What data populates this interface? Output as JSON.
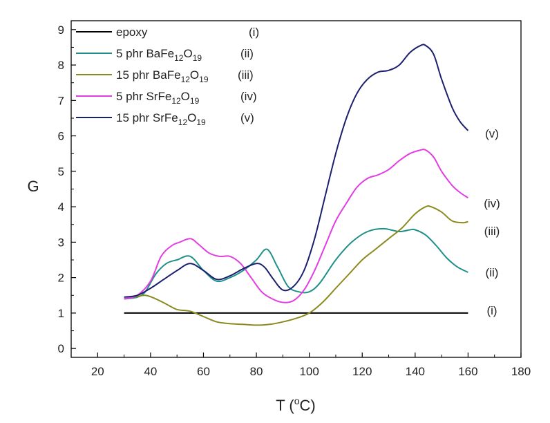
{
  "chart_data": {
    "type": "line",
    "title": "",
    "xlabel": "T (",
    "xlabel_sup": "o",
    "xlabel_tail": "C)",
    "ylabel": "G",
    "xlim": [
      10,
      180
    ],
    "ylim": [
      -0.25,
      9.25
    ],
    "xticks": [
      20,
      40,
      60,
      80,
      100,
      120,
      140,
      160,
      180
    ],
    "yticks": [
      0,
      1,
      2,
      3,
      4,
      5,
      6,
      7,
      8,
      9
    ],
    "legend_position": "top-left",
    "series": [
      {
        "name": "epoxy",
        "tag": "(i)",
        "end_label": "(i)",
        "color": "#000000",
        "legend": [
          {
            "t": "epoxy",
            "sub": false
          }
        ],
        "x": [
          30,
          160
        ],
        "y": [
          1.0,
          1.0
        ]
      },
      {
        "name": "5 phr BaFe12O19",
        "tag": "(ii)",
        "end_label": "(ii)",
        "color": "#1f8f8a",
        "legend": [
          {
            "t": "5 phr BaFe",
            "sub": false
          },
          {
            "t": "12",
            "sub": true
          },
          {
            "t": "O",
            "sub": false
          },
          {
            "t": "19",
            "sub": true
          }
        ],
        "x": [
          30,
          35,
          38,
          42,
          46,
          50,
          55,
          60,
          65,
          70,
          75,
          80,
          84,
          88,
          92,
          96,
          100,
          104,
          110,
          116,
          122,
          128,
          134,
          138,
          140,
          144,
          148,
          152,
          156,
          160
        ],
        "y": [
          1.4,
          1.45,
          1.6,
          2.1,
          2.4,
          2.5,
          2.6,
          2.2,
          1.9,
          2.0,
          2.2,
          2.5,
          2.8,
          2.3,
          1.75,
          1.6,
          1.6,
          1.85,
          2.5,
          3.0,
          3.3,
          3.38,
          3.3,
          3.35,
          3.35,
          3.2,
          2.9,
          2.55,
          2.3,
          2.15
        ]
      },
      {
        "name": "15 phr BaFe12O19",
        "tag": "(iii)",
        "end_label": "(iii)",
        "color": "#8a8a1f",
        "legend": [
          {
            "t": "15 phr BaFe",
            "sub": false
          },
          {
            "t": "12",
            "sub": true
          },
          {
            "t": "O",
            "sub": false
          },
          {
            "t": "19",
            "sub": true
          }
        ],
        "x": [
          30,
          34,
          38,
          42,
          46,
          50,
          55,
          60,
          65,
          70,
          75,
          80,
          85,
          90,
          95,
          100,
          105,
          110,
          115,
          120,
          125,
          130,
          135,
          140,
          144,
          146,
          150,
          154,
          158,
          160
        ],
        "y": [
          1.4,
          1.45,
          1.5,
          1.4,
          1.25,
          1.1,
          1.05,
          0.9,
          0.75,
          0.7,
          0.68,
          0.66,
          0.68,
          0.75,
          0.85,
          1.0,
          1.3,
          1.7,
          2.1,
          2.5,
          2.8,
          3.1,
          3.4,
          3.8,
          4.0,
          4.0,
          3.85,
          3.6,
          3.55,
          3.58
        ]
      },
      {
        "name": "5 phr SrFe12O19",
        "tag": "(iv)",
        "end_label": "(iv)",
        "color": "#e23de2",
        "legend": [
          {
            "t": "5 phr SrFe",
            "sub": false
          },
          {
            "t": "12",
            "sub": true
          },
          {
            "t": "O",
            "sub": false
          },
          {
            "t": "19",
            "sub": true
          }
        ],
        "x": [
          30,
          35,
          40,
          44,
          48,
          51,
          55,
          58,
          62,
          66,
          70,
          74,
          78,
          82,
          86,
          90,
          94,
          98,
          102,
          106,
          110,
          114,
          118,
          122,
          126,
          130,
          134,
          138,
          142,
          144,
          147,
          150,
          154,
          157,
          160
        ],
        "y": [
          1.4,
          1.5,
          1.9,
          2.6,
          2.9,
          3.0,
          3.1,
          2.95,
          2.7,
          2.6,
          2.6,
          2.4,
          2.0,
          1.6,
          1.4,
          1.3,
          1.35,
          1.65,
          2.2,
          2.9,
          3.6,
          4.1,
          4.55,
          4.8,
          4.9,
          5.05,
          5.3,
          5.5,
          5.6,
          5.6,
          5.4,
          5.0,
          4.6,
          4.4,
          4.25
        ]
      },
      {
        "name": "15 phr SrFe12O19",
        "tag": "(v)",
        "end_label": "(v)",
        "color": "#1a1f6e",
        "legend": [
          {
            "t": "15 phr SrFe",
            "sub": false
          },
          {
            "t": "12",
            "sub": true
          },
          {
            "t": "O",
            "sub": false
          },
          {
            "t": "19",
            "sub": true
          }
        ],
        "x": [
          30,
          35,
          40,
          45,
          50,
          55,
          60,
          65,
          70,
          75,
          80,
          83,
          86,
          90,
          94,
          98,
          102,
          106,
          110,
          114,
          118,
          122,
          126,
          130,
          134,
          138,
          142,
          144,
          147,
          150,
          154,
          157,
          160
        ],
        "y": [
          1.45,
          1.5,
          1.7,
          1.95,
          2.2,
          2.4,
          2.2,
          1.95,
          2.05,
          2.25,
          2.4,
          2.3,
          2.0,
          1.65,
          1.75,
          2.2,
          3.1,
          4.3,
          5.5,
          6.5,
          7.2,
          7.6,
          7.8,
          7.85,
          8.0,
          8.35,
          8.55,
          8.55,
          8.3,
          7.6,
          6.8,
          6.4,
          6.15
        ]
      }
    ]
  }
}
